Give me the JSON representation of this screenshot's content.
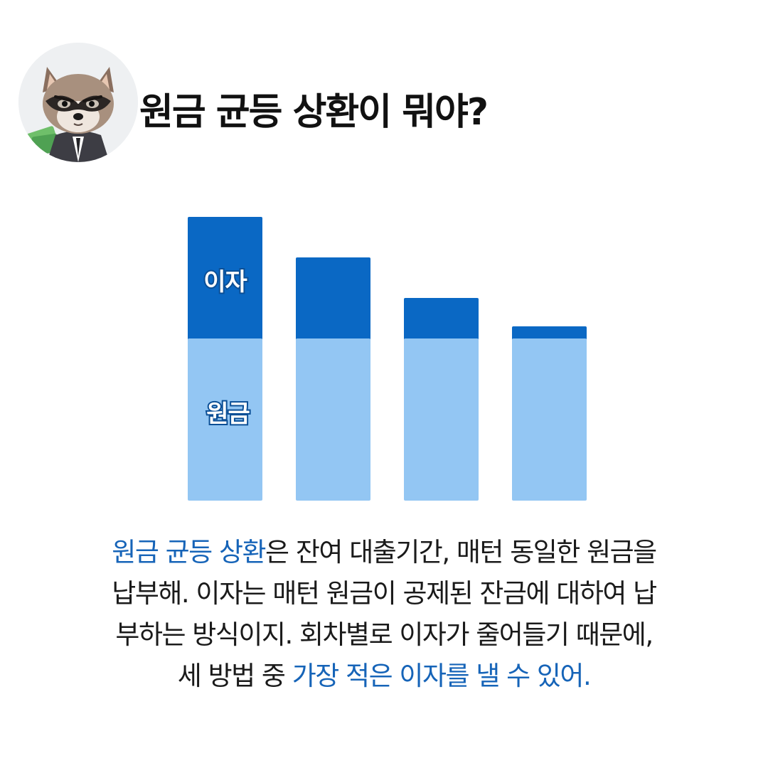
{
  "title": "원금 균등 상환이 뭐야?",
  "colors": {
    "interest": "#0a68c4",
    "principal": "#93c6f3",
    "highlight": "#1664b8",
    "text": "#1a1a1a"
  },
  "chart_data": {
    "type": "bar",
    "stacked": true,
    "categories": [
      "",
      "",
      "",
      ""
    ],
    "series": [
      {
        "name": "원금",
        "values": [
          1,
          1,
          1,
          1
        ],
        "color": "#93c6f3"
      },
      {
        "name": "이자",
        "values": [
          0.75,
          0.5,
          0.25,
          0.075
        ],
        "color": "#0a68c4"
      }
    ],
    "ylim": [
      0,
      1.75
    ],
    "grid": false,
    "legend": "inline-first-bar",
    "title": "",
    "xlabel": "",
    "ylabel": ""
  },
  "caption": {
    "line1_hl": "원금 균등 상환",
    "line1_rest": "은 잔여 대출기간, 매턴 동일한 원금을",
    "line2": "납부해. 이자는 매턴 원금이 공제된 잔금에 대하여 납",
    "line3": "부하는 방식이지. 회차별로 이자가 줄어들기 때문에,",
    "line4_pre": "세 방법 중 ",
    "line4_hl": "가장 적은 이자를 낼 수 있어."
  }
}
